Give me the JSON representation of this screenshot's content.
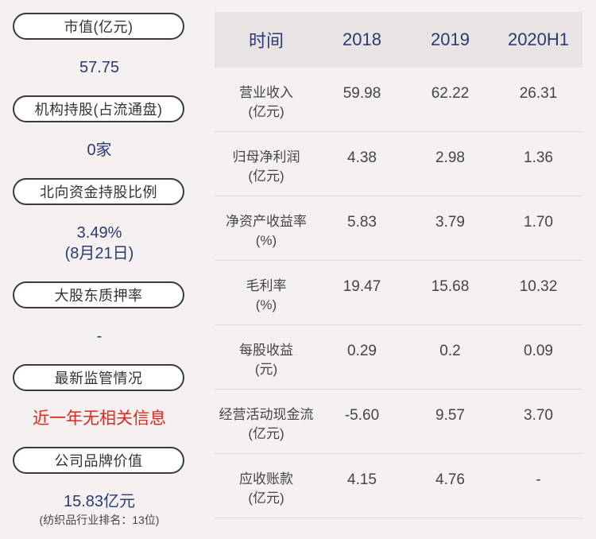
{
  "left_panel": {
    "items": [
      {
        "label": "市值(亿元)",
        "value": "57.75"
      },
      {
        "label": "机构持股(占流通盘)",
        "value": "0家"
      },
      {
        "label": "北向资金持股比例",
        "value": "3.49%",
        "value2": "(8月21日)"
      },
      {
        "label": "大股东质押率",
        "value": "-"
      },
      {
        "label": "最新监管情况",
        "value": "近一年无相关信息"
      },
      {
        "label": "公司品牌价值",
        "value": "15.83亿元",
        "note": "(纺织品行业排名：13位)"
      }
    ],
    "colors": {
      "value": "#2b3a73",
      "alert": "#e0281f"
    }
  },
  "table": {
    "headers": [
      "时间",
      "2018",
      "2019",
      "2020H1"
    ],
    "rows": [
      {
        "line1": "营业收入",
        "line2": "(亿元)",
        "values": [
          "59.98",
          "62.22",
          "26.31"
        ]
      },
      {
        "line1": "归母净利润",
        "line2": "(亿元)",
        "values": [
          "4.38",
          "2.98",
          "1.36"
        ]
      },
      {
        "line1": "净资产收益率",
        "line2": "(%)",
        "values": [
          "5.83",
          "3.79",
          "1.70"
        ]
      },
      {
        "line1": "毛利率",
        "line2": "(%)",
        "values": [
          "19.47",
          "15.68",
          "10.32"
        ]
      },
      {
        "line1": "每股收益",
        "line2": "(元)",
        "values": [
          "0.29",
          "0.2",
          "0.09"
        ]
      },
      {
        "line1": "经营活动现金流",
        "line2": "(亿元)",
        "values": [
          "-5.60",
          "9.57",
          "3.70"
        ]
      },
      {
        "line1": "应收账款",
        "line2": "(亿元)",
        "values": [
          "4.15",
          "4.76",
          "-"
        ]
      }
    ]
  }
}
